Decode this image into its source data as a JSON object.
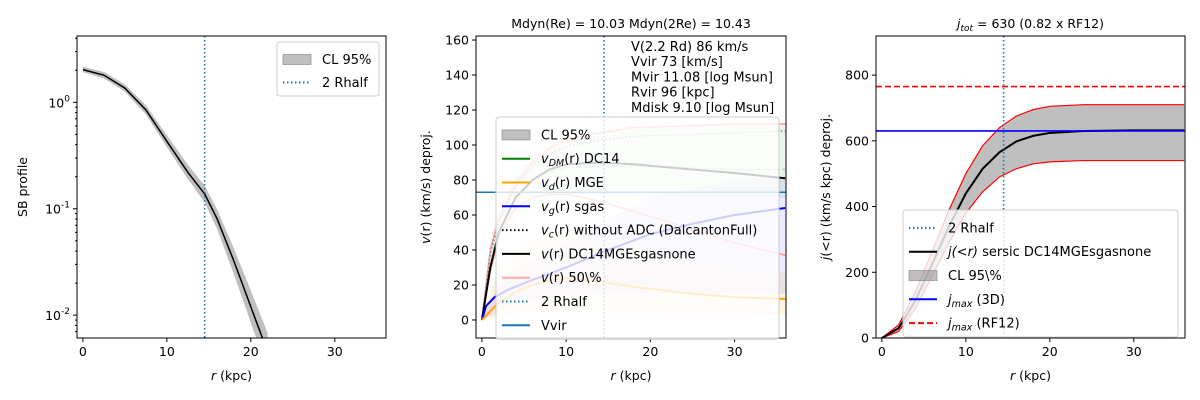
{
  "chart_data": [
    {
      "type": "line",
      "title": "",
      "xlabel": "r (kpc)",
      "ylabel": "SB profile",
      "yscale": "log",
      "xlim": [
        -0.7,
        36.1
      ],
      "ylim": [
        0.0061,
        4.2
      ],
      "xticks": [
        0,
        10,
        20,
        30
      ],
      "xtick_labels": [
        "0",
        "10",
        "20",
        "30"
      ],
      "yticks": [
        1,
        0.1,
        0.01
      ],
      "ytick_labels": [
        "10^0",
        "10^-1",
        "10^-2"
      ],
      "legend_position": "top-right",
      "series": [
        {
          "name": "CL 95%",
          "kind": "band",
          "color": "#808080",
          "opacity": 0.5,
          "x": [
            0,
            2.5,
            5,
            7.5,
            10,
            12.5,
            14.5,
            16,
            18,
            20,
            22
          ],
          "lo": [
            1.92,
            1.68,
            1.26,
            0.77,
            0.38,
            0.19,
            0.115,
            0.064,
            0.024,
            0.0085,
            0.003
          ],
          "hi": [
            2.16,
            1.93,
            1.47,
            0.94,
            0.49,
            0.26,
            0.165,
            0.098,
            0.042,
            0.017,
            0.0068
          ]
        },
        {
          "name": "SB",
          "kind": "line",
          "color": "#000000",
          "x": [
            0,
            2.5,
            5,
            7.5,
            10,
            12.5,
            14.5,
            16,
            18,
            20,
            22
          ],
          "y": [
            2.03,
            1.8,
            1.36,
            0.85,
            0.43,
            0.22,
            0.138,
            0.08,
            0.032,
            0.012,
            0.0045
          ]
        },
        {
          "name": "2 Rhalf",
          "kind": "vline",
          "color": "#1f77b4",
          "dash": "dotted",
          "value": 14.5
        }
      ],
      "legend": [
        {
          "label": "CL 95%",
          "marker": "band",
          "color": "#808080"
        },
        {
          "label": "2 Rhalf",
          "marker": "line",
          "color": "#1f77b4",
          "dash": "dotted"
        }
      ]
    },
    {
      "type": "line",
      "title": "Mdyn(Re) = 10.03  Mdyn(2Re) = 10.43",
      "xlabel": "r (kpc)",
      "ylabel": "v(r) (km/s) deproj.",
      "xlim": [
        -0.7,
        36.1
      ],
      "ylim": [
        -10.3,
        162.3
      ],
      "xticks": [
        0,
        10,
        20,
        30
      ],
      "xtick_labels": [
        "0",
        "10",
        "20",
        "30"
      ],
      "yticks": [
        0,
        20,
        40,
        60,
        80,
        100,
        120,
        140,
        160
      ],
      "ytick_labels": [
        "0",
        "20",
        "40",
        "60",
        "80",
        "100",
        "120",
        "140",
        "160"
      ],
      "annotations": [
        "V(2.2 Rd) 86 km/s",
        "Vvir 73 [km/s]",
        "Mvir 11.08 [log Msun]",
        "Rvir 96 [kpc]",
        "Mdisk 9.10 [log Msun]"
      ],
      "legend_position": "center-left",
      "series": [
        {
          "name": "DM band",
          "kind": "band",
          "color": "#2ca02c",
          "opacity": 0.1,
          "x": [
            0,
            1,
            2,
            4,
            6,
            8,
            10,
            14,
            18,
            25,
            30,
            36
          ],
          "lo": [
            0,
            25,
            42,
            58,
            65,
            70,
            72,
            72,
            71,
            70,
            70,
            70
          ],
          "hi": [
            0,
            45,
            62,
            82,
            93,
            100,
            104,
            108,
            110,
            111,
            112,
            112
          ]
        },
        {
          "name": "v_d band",
          "kind": "band",
          "color": "#ffa500",
          "opacity": 0.12,
          "x": [
            0,
            2,
            5,
            10,
            15,
            20,
            30,
            36
          ],
          "lo": [
            0,
            2,
            4,
            5,
            5,
            4,
            3.5,
            3
          ],
          "hi": [
            0,
            30,
            45,
            50,
            45,
            38,
            30,
            27
          ]
        },
        {
          "name": "v_g band",
          "kind": "band",
          "color": "#0000ff",
          "opacity": 0.08,
          "x": [
            0,
            2,
            5,
            10,
            15,
            20,
            30,
            36
          ],
          "lo": [
            0,
            5,
            10,
            14,
            15,
            15,
            15,
            15
          ],
          "hi": [
            0,
            20,
            32,
            45,
            58,
            70,
            80,
            82
          ]
        },
        {
          "name": "v(r) 50% upper",
          "kind": "line",
          "color": "#ff9999",
          "x": [
            0,
            1,
            2,
            4,
            6,
            8,
            10,
            14,
            18,
            25,
            30,
            36
          ],
          "y": [
            0,
            40,
            58,
            78,
            90,
            98,
            103,
            107,
            110,
            111,
            112,
            112
          ]
        },
        {
          "name": "v(r) 50% lower",
          "kind": "line",
          "color": "#ff9999",
          "x": [
            0,
            1,
            2,
            4,
            6,
            8,
            10,
            14,
            18,
            25,
            30,
            36
          ],
          "y": [
            0,
            28,
            48,
            64,
            70,
            72,
            72,
            68,
            62,
            52,
            44,
            37
          ]
        },
        {
          "name": "v_c(r) without ADC (DalcantonFull)",
          "kind": "line",
          "color": "#808080",
          "dash": "dotted",
          "x": [
            0,
            1,
            2,
            4,
            6,
            8,
            10,
            14,
            18,
            25,
            30,
            36
          ],
          "y": [
            0,
            38,
            56,
            76,
            88,
            95,
            99,
            103,
            105,
            106,
            107,
            108
          ]
        },
        {
          "name": "v_DM(r) DC14",
          "kind": "line",
          "color": "#2ca02c",
          "opacity": 0.35,
          "dash": "dashed",
          "x": [
            0,
            1,
            2,
            4,
            6,
            8,
            10,
            14,
            18,
            25,
            30,
            36
          ],
          "y": [
            0,
            30,
            50,
            70,
            80,
            85,
            87,
            88,
            88,
            87,
            86,
            86
          ]
        },
        {
          "name": "v(r) DC14MGEsgasnone",
          "kind": "line",
          "color": "#000000",
          "width": 2,
          "x": [
            0,
            1,
            2,
            4,
            6,
            8,
            10,
            14,
            18,
            25,
            30,
            36
          ],
          "y": [
            0,
            30,
            50,
            70,
            80,
            86,
            89,
            90,
            89,
            86,
            84,
            81
          ]
        },
        {
          "name": "v_g(r) sgas",
          "kind": "line",
          "color": "#0000ff",
          "width": 2,
          "x": [
            0,
            0.5,
            1.5,
            3,
            5,
            10,
            15,
            20,
            25,
            30,
            36
          ],
          "y": [
            0,
            8,
            13,
            17,
            21,
            30,
            40,
            49,
            55,
            60,
            64
          ]
        },
        {
          "name": "v_d(r) MGE",
          "kind": "line",
          "color": "#ffa500",
          "width": 2,
          "x": [
            0,
            1,
            2,
            4,
            6,
            8,
            10,
            14,
            18,
            25,
            30,
            36
          ],
          "y": [
            0,
            5,
            10,
            16,
            20,
            23,
            24,
            22,
            19,
            15,
            13,
            12
          ]
        },
        {
          "name": "Vvir",
          "kind": "hline",
          "color": "#1f77b4",
          "value": 73
        },
        {
          "name": "2 Rhalf",
          "kind": "vline",
          "color": "#1f77b4",
          "dash": "dotted",
          "value": 14.5
        }
      ],
      "legend": [
        {
          "label": "CL 95%",
          "marker": "band",
          "color": "#808080"
        },
        {
          "label": "v",
          "sub": "DM",
          "post": "(r) DC14",
          "marker": "line",
          "color": "#008000"
        },
        {
          "label": "v",
          "sub": "d",
          "post": "(r) MGE",
          "marker": "line",
          "color": "#ffa500"
        },
        {
          "label": "v",
          "sub": "g",
          "post": "(r) sgas",
          "marker": "line",
          "color": "#0000ff"
        },
        {
          "label": "v",
          "sub": "c",
          "post": "(r) without ADC (DalcantonFull)",
          "marker": "line",
          "color": "#000000",
          "dash": "dotted"
        },
        {
          "label": "v",
          "post": "(r) DC14MGEsgasnone",
          "marker": "line",
          "color": "#000000"
        },
        {
          "label": "v",
          "post": "(r) 50\\%",
          "marker": "line",
          "color": "#ffaaaa"
        },
        {
          "label": "2 Rhalf",
          "marker": "line",
          "color": "#1f77b4",
          "dash": "dotted"
        },
        {
          "label": "Vvir",
          "marker": "line",
          "color": "#1f77b4"
        }
      ]
    },
    {
      "type": "line",
      "title": "j_tot = 630 (0.82 x RF12)",
      "xlabel": "r (kpc)",
      "ylabel": "j(<r) (km/s kpc) deproj.",
      "xlim": [
        -0.7,
        36.1
      ],
      "ylim": [
        0,
        919
      ],
      "xticks": [
        0,
        10,
        20,
        30
      ],
      "xtick_labels": [
        "0",
        "10",
        "20",
        "30"
      ],
      "yticks": [
        0,
        200,
        400,
        600,
        800
      ],
      "ytick_labels": [
        "0",
        "200",
        "400",
        "600",
        "800"
      ],
      "legend_position": "lower-right",
      "series": [
        {
          "name": "CL 95\\%",
          "kind": "band",
          "color": "#808080",
          "opacity": 0.5,
          "edge": "#ff0000",
          "x": [
            0,
            2,
            4,
            6,
            8,
            10,
            12,
            14,
            16,
            18,
            20,
            24,
            30,
            36
          ],
          "lo": [
            0,
            20,
            90,
            190,
            290,
            380,
            445,
            490,
            515,
            530,
            536,
            540,
            540,
            540
          ],
          "hi": [
            0,
            40,
            140,
            265,
            390,
            500,
            585,
            640,
            675,
            695,
            705,
            710,
            710,
            710
          ]
        },
        {
          "name": "j(<r) sersic DC14MGEsgasnone",
          "kind": "line",
          "color": "#000000",
          "width": 2,
          "x": [
            0,
            2,
            4,
            6,
            8,
            10,
            12,
            14,
            16,
            18,
            20,
            24,
            30,
            36
          ],
          "y": [
            0,
            30,
            115,
            225,
            340,
            440,
            515,
            565,
            598,
            615,
            624,
            630,
            632,
            632
          ]
        },
        {
          "name": "j_max (3D)",
          "kind": "hline",
          "color": "#0000ff",
          "value": 630
        },
        {
          "name": "j_max (RF12)",
          "kind": "hline",
          "color": "#ff0000",
          "dash": "dashed",
          "value": 765
        },
        {
          "name": "2 Rhalf",
          "kind": "vline",
          "color": "#1f77b4",
          "dash": "dotted",
          "value": 14.5
        }
      ],
      "legend": [
        {
          "label": "2 Rhalf",
          "marker": "line",
          "color": "#1f77b4",
          "dash": "dotted"
        },
        {
          "label": "j(<r)",
          "post": " sersic DC14MGEsgasnone",
          "marker": "line",
          "color": "#000000"
        },
        {
          "label": "CL 95\\%",
          "marker": "band",
          "color": "#808080"
        },
        {
          "label": "j",
          "sub": "max",
          "post": " (3D)",
          "marker": "line",
          "color": "#0000ff"
        },
        {
          "label": "j",
          "sub": "max",
          "post": " (RF12)",
          "marker": "line",
          "color": "#ff0000",
          "dash": "dashed"
        }
      ]
    }
  ]
}
